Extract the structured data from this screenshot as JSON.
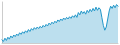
{
  "chart_data": {
    "type": "line",
    "x": [
      0,
      1,
      2,
      3,
      4,
      5,
      6,
      7,
      8,
      9,
      10,
      11,
      12,
      13,
      14,
      15,
      16,
      17,
      18,
      19,
      20,
      21,
      22,
      23,
      24,
      25,
      26,
      27,
      28,
      29,
      30,
      31,
      32,
      33,
      34,
      35,
      36,
      37,
      38,
      39,
      40,
      41,
      42,
      43,
      44,
      45,
      46,
      47,
      48,
      49,
      50,
      51,
      52,
      53,
      54,
      55,
      56,
      57,
      58,
      59,
      60,
      61,
      62,
      63,
      64,
      65,
      66,
      67,
      68,
      69,
      70,
      71,
      72,
      73,
      74,
      75,
      76,
      77,
      78,
      79
    ],
    "values": [
      130,
      125,
      135,
      128,
      138,
      132,
      142,
      136,
      145,
      140,
      148,
      143,
      152,
      147,
      155,
      150,
      158,
      153,
      162,
      156,
      165,
      160,
      168,
      163,
      170,
      165,
      172,
      167,
      175,
      170,
      178,
      173,
      182,
      177,
      185,
      180,
      188,
      183,
      192,
      187,
      195,
      190,
      198,
      193,
      200,
      195,
      202,
      197,
      205,
      200,
      208,
      200,
      215,
      208,
      220,
      212,
      218,
      210,
      222,
      215,
      225,
      218,
      228,
      220,
      232,
      222,
      230,
      225,
      200,
      175,
      160,
      170,
      195,
      220,
      235,
      228,
      238,
      230,
      240,
      235
    ],
    "color": "#2196c8",
    "xlim": [
      0,
      79
    ],
    "ylim": [
      120,
      248
    ],
    "grid": false,
    "tick_labels": false
  }
}
